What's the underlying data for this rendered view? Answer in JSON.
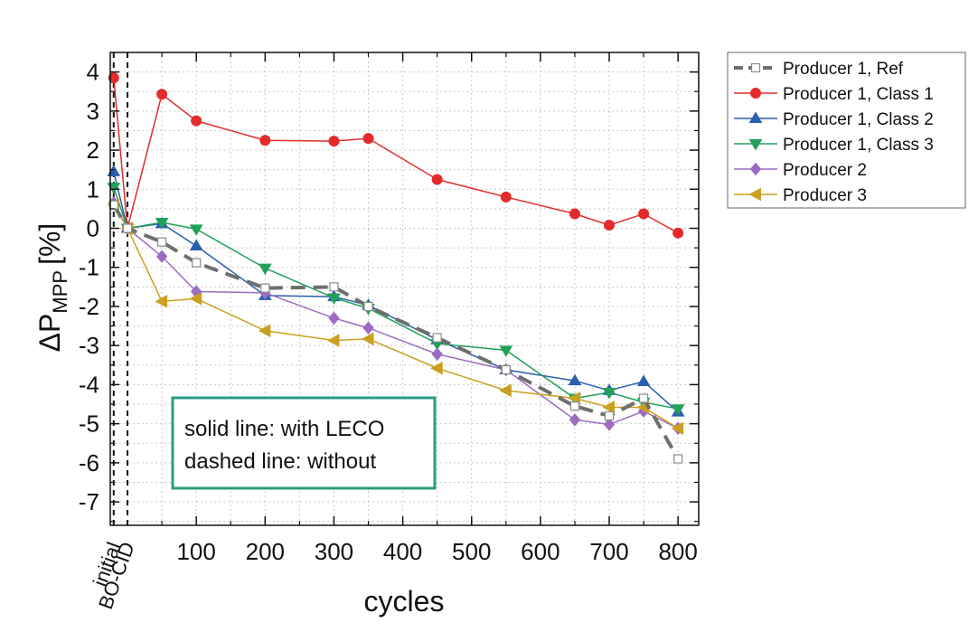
{
  "chart_data": {
    "type": "line",
    "title": "",
    "xlabel": "cycles",
    "ylabel_main": "ΔP",
    "ylabel_sub": "MPP",
    "ylabel_unit": "[%]",
    "xlim": [
      -25,
      830
    ],
    "ylim": [
      -7.6,
      4.5
    ],
    "x_ticks": [
      100,
      200,
      300,
      400,
      500,
      600,
      700,
      800
    ],
    "y_ticks": [
      4,
      3,
      2,
      1,
      0,
      -1,
      -2,
      -3,
      -4,
      -5,
      -6,
      -7
    ],
    "x_category_labels": [
      {
        "x": -20,
        "label": "initial"
      },
      {
        "x": 0,
        "label": "BO-CID"
      }
    ],
    "grid": true,
    "legend_position": "outside-top-right",
    "annotation": [
      "solid line: with LECO",
      "dashed line: without"
    ],
    "series": [
      {
        "name": "Producer 1, Ref",
        "color": "#6e6e6e",
        "marker": "square-open",
        "dashed": true,
        "x": [
          -20,
          0,
          50,
          100,
          200,
          300,
          350,
          450,
          550,
          650,
          700,
          750,
          800
        ],
        "y": [
          0.6,
          0.0,
          -0.35,
          -0.88,
          -1.53,
          -1.5,
          -2.0,
          -2.8,
          -3.62,
          -4.55,
          -4.8,
          -4.35,
          -5.9
        ]
      },
      {
        "name": "Producer 1, Class 1",
        "color": "#e32b2b",
        "marker": "circle",
        "x": [
          -20,
          0,
          50,
          100,
          200,
          300,
          350,
          450,
          550,
          650,
          700,
          750,
          800
        ],
        "y": [
          3.85,
          0.0,
          3.43,
          2.75,
          2.25,
          2.23,
          2.3,
          1.25,
          0.8,
          0.37,
          0.08,
          0.37,
          -0.12
        ]
      },
      {
        "name": "Producer 1, Class 2",
        "color": "#2b5fb0",
        "marker": "triangle-up",
        "x": [
          -20,
          0,
          50,
          100,
          200,
          300,
          350,
          450,
          550,
          650,
          700,
          750,
          800
        ],
        "y": [
          1.45,
          0.0,
          0.12,
          -0.45,
          -1.72,
          -1.75,
          -1.97,
          -2.85,
          -3.62,
          -3.9,
          -4.15,
          -3.92,
          -4.7
        ]
      },
      {
        "name": "Producer 1, Class 3",
        "color": "#22a05a",
        "marker": "triangle-down",
        "x": [
          -20,
          0,
          50,
          100,
          200,
          300,
          350,
          450,
          550,
          650,
          700,
          750,
          800
        ],
        "y": [
          1.05,
          0.0,
          0.15,
          -0.02,
          -1.02,
          -1.78,
          -2.05,
          -2.95,
          -3.12,
          -4.35,
          -4.2,
          -4.45,
          -4.62
        ]
      },
      {
        "name": "Producer 2",
        "color": "#9a6cc2",
        "marker": "diamond",
        "x": [
          -20,
          0,
          50,
          100,
          200,
          300,
          350,
          450,
          550,
          650,
          700,
          750,
          800
        ],
        "y": [
          0.65,
          0.0,
          -0.72,
          -1.62,
          -1.65,
          -2.3,
          -2.55,
          -3.22,
          -3.62,
          -4.9,
          -5.02,
          -4.68,
          -5.12
        ]
      },
      {
        "name": "Producer 3",
        "color": "#c9a020",
        "marker": "triangle-left",
        "x": [
          -20,
          0,
          50,
          100,
          200,
          300,
          350,
          450,
          550,
          650,
          700,
          750,
          800
        ],
        "y": [
          0.6,
          0.0,
          -1.87,
          -1.8,
          -2.62,
          -2.87,
          -2.83,
          -3.58,
          -4.15,
          -4.35,
          -4.58,
          -4.58,
          -5.12
        ]
      }
    ]
  }
}
